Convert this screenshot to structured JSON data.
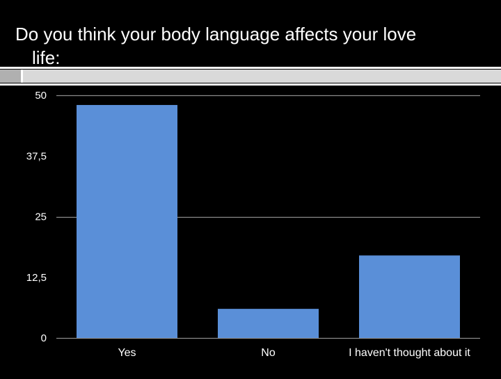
{
  "slide": {
    "title_line1": "Do you think your body language affects your love",
    "title_line2": "life:"
  },
  "colors": {
    "background": "#000000",
    "bar": "#5a8fd8",
    "gridline": "#8a8a8a",
    "text": "#ffffff",
    "divider_block": "#b0b0b0",
    "divider_fill": "#d9d9d9"
  },
  "chart_data": {
    "type": "bar",
    "title": "Do you think your body language affects your love life:",
    "categories": [
      "Yes",
      "No",
      "I haven't thought about it"
    ],
    "values": [
      48,
      6,
      17
    ],
    "xlabel": "",
    "ylabel": "",
    "ylim": [
      0,
      50
    ],
    "yticks": [
      0,
      12.5,
      25,
      37.5,
      50
    ],
    "ytick_labels": [
      "0",
      "12,5",
      "25",
      "37,5",
      "50"
    ],
    "gridlines_at": [
      0,
      25,
      50
    ],
    "legend": null
  }
}
